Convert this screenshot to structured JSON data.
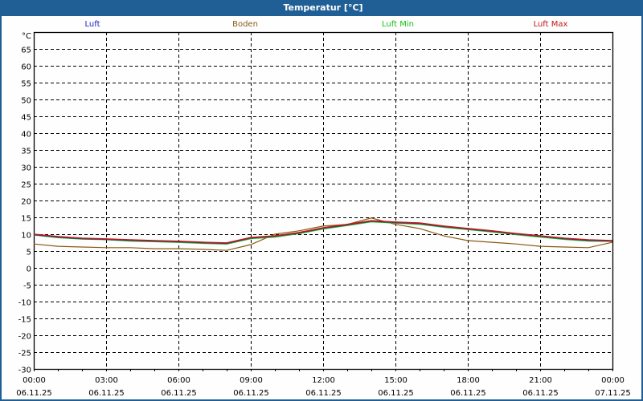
{
  "window": {
    "title": "Temperatur [°C]"
  },
  "legend": [
    {
      "label": "Luft",
      "color": "#2020c0"
    },
    {
      "label": "Boden",
      "color": "#8a5a14"
    },
    {
      "label": "Luft Min",
      "color": "#19c019"
    },
    {
      "label": "Luft Max",
      "color": "#c01919"
    }
  ],
  "chart_data": {
    "type": "line",
    "title": "Temperatur [°C]",
    "xlabel": "",
    "ylabel": "°C",
    "ylim": [
      -30,
      70
    ],
    "yticks": [
      65,
      60,
      55,
      50,
      45,
      40,
      35,
      30,
      25,
      20,
      15,
      10,
      5,
      0,
      -5,
      -10,
      -15,
      -20,
      -25,
      -30
    ],
    "x_tick_labels": [
      {
        "time": "00:00",
        "date": "06.11.25"
      },
      {
        "time": "03:00",
        "date": "06.11.25"
      },
      {
        "time": "06:00",
        "date": "06.11.25"
      },
      {
        "time": "09:00",
        "date": "06.11.25"
      },
      {
        "time": "12:00",
        "date": "06.11.25"
      },
      {
        "time": "15:00",
        "date": "06.11.25"
      },
      {
        "time": "18:00",
        "date": "06.11.25"
      },
      {
        "time": "21:00",
        "date": "06.11.25"
      },
      {
        "time": "00:00",
        "date": "07.11.25"
      }
    ],
    "grid": true,
    "legend_position": "top",
    "x_hours": [
      0,
      1,
      2,
      3,
      4,
      5,
      6,
      7,
      8,
      9,
      10,
      11,
      12,
      13,
      14,
      15,
      16,
      17,
      18,
      19,
      20,
      21,
      22,
      23,
      24
    ],
    "series": [
      {
        "name": "Luft",
        "color": "#2020c0",
        "values": [
          9.9,
          9.2,
          8.7,
          8.5,
          8.2,
          8.0,
          7.8,
          7.5,
          7.3,
          8.9,
          9.4,
          10.4,
          11.8,
          12.8,
          13.9,
          13.5,
          13.2,
          12.3,
          11.6,
          10.9,
          10.1,
          9.4,
          8.7,
          8.2,
          8.0
        ]
      },
      {
        "name": "Boden",
        "color": "#8a5a14",
        "values": [
          7.1,
          6.4,
          6.2,
          6.0,
          6.0,
          5.7,
          5.7,
          5.5,
          5.2,
          6.9,
          10.0,
          11.0,
          12.4,
          12.9,
          14.8,
          12.9,
          11.7,
          9.5,
          8.1,
          7.6,
          7.1,
          6.4,
          6.2,
          6.0,
          7.6
        ]
      },
      {
        "name": "Luft Min",
        "color": "#19c019",
        "values": [
          9.8,
          9.0,
          8.6,
          8.4,
          8.0,
          7.8,
          7.6,
          7.3,
          7.1,
          8.7,
          9.2,
          10.2,
          11.6,
          12.6,
          13.7,
          13.3,
          13.0,
          12.1,
          11.4,
          10.7,
          9.9,
          9.2,
          8.5,
          8.0,
          7.9
        ]
      },
      {
        "name": "Luft Max",
        "color": "#c01919",
        "values": [
          10.0,
          9.3,
          8.8,
          8.6,
          8.3,
          8.1,
          7.9,
          7.6,
          7.4,
          9.0,
          9.5,
          10.5,
          11.9,
          12.9,
          14.0,
          13.6,
          13.3,
          12.4,
          11.7,
          11.0,
          10.2,
          9.5,
          8.8,
          8.3,
          8.1
        ]
      }
    ]
  }
}
